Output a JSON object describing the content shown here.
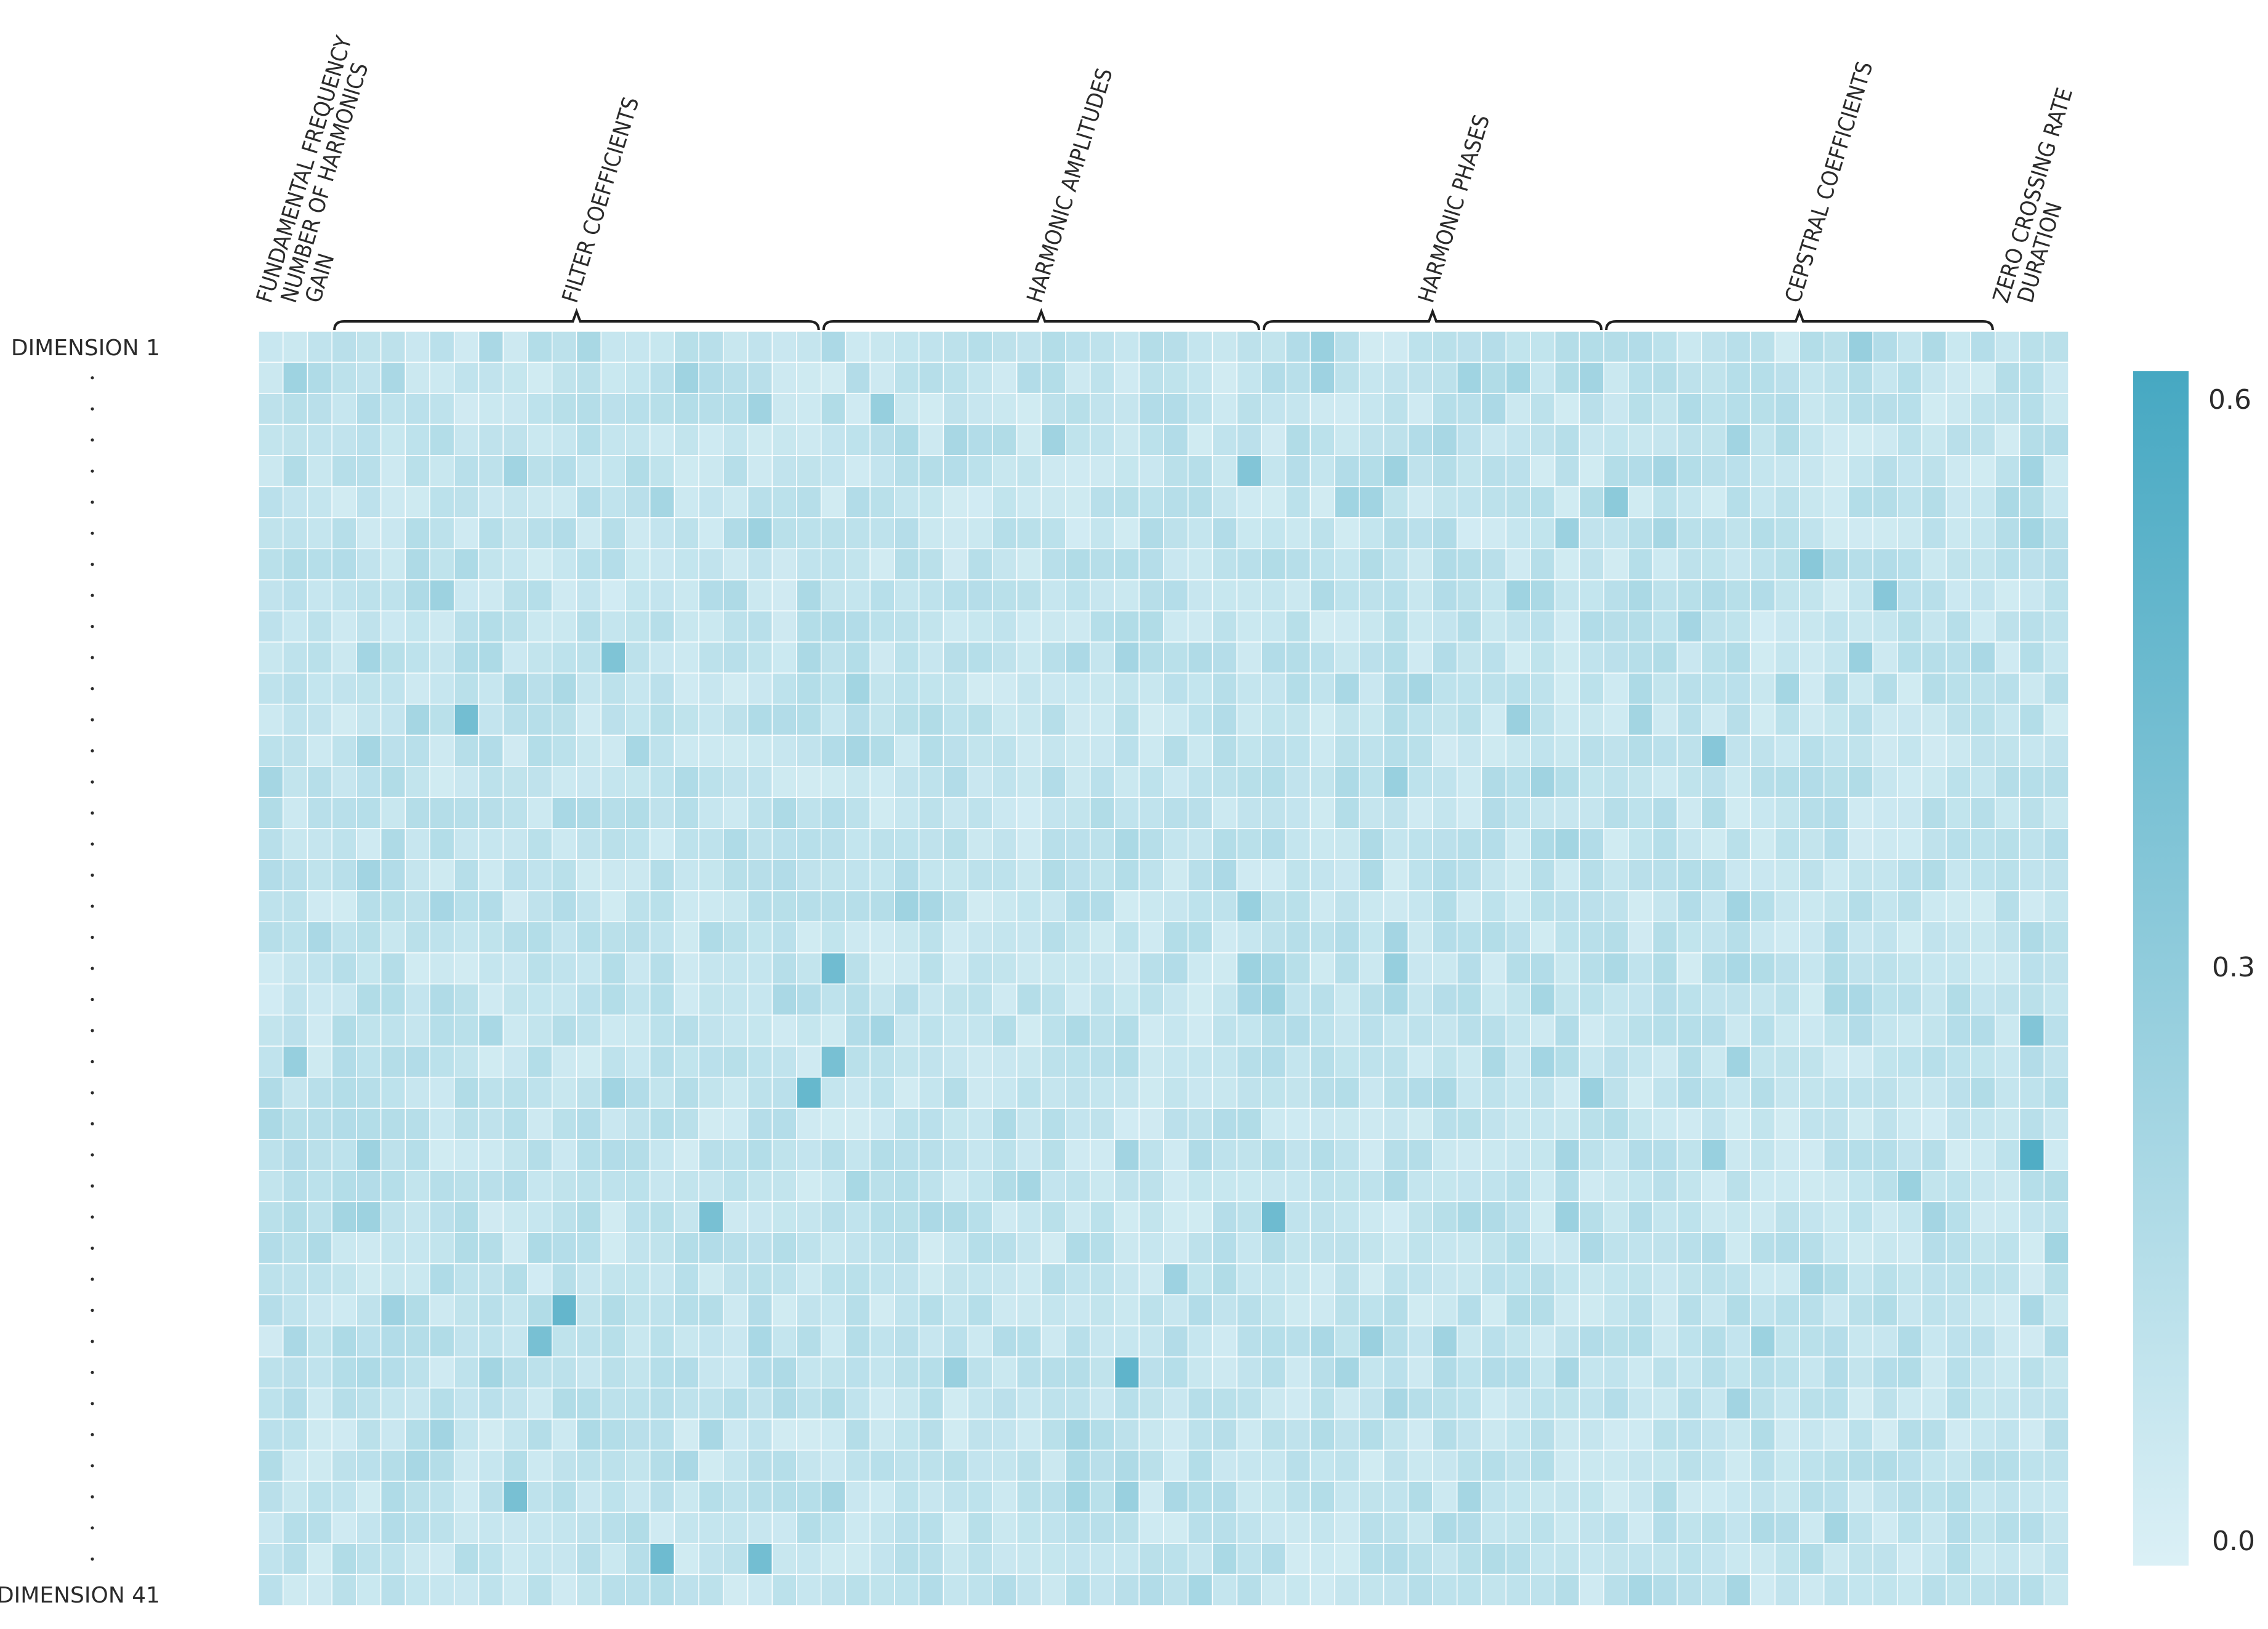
{
  "chart_data": {
    "type": "heatmap",
    "row_labels": {
      "first": "DIMENSION 1",
      "last": "DIMENSION 41"
    },
    "n_rows": 41,
    "n_cols": 74,
    "column_feature_labels": [
      {
        "text": "FUNDAMENTAL FREQUENCY",
        "col_start": 0,
        "col_end": 0
      },
      {
        "text": "NUMBER OF HARMONICS",
        "col_start": 1,
        "col_end": 1
      },
      {
        "text": "GAIN",
        "col_start": 2,
        "col_end": 2
      },
      {
        "text": "FILTER COEFFICIENTS",
        "col_start": 3,
        "col_end": 22,
        "bracket": true
      },
      {
        "text": "HARMONIC AMPLITUDES",
        "col_start": 23,
        "col_end": 40,
        "bracket": true
      },
      {
        "text": "HARMONIC PHASES",
        "col_start": 41,
        "col_end": 54,
        "bracket": true
      },
      {
        "text": "CEPSTRAL COEFFICIENTS",
        "col_start": 55,
        "col_end": 70,
        "bracket": true
      },
      {
        "text": "ZERO CROSSING RATE",
        "col_start": 71,
        "col_end": 71
      },
      {
        "text": "DURATION",
        "col_start": 72,
        "col_end": 72
      }
    ],
    "colorbar": {
      "min": 0.0,
      "max": 0.6,
      "ticks": [
        "0.6",
        "0.3",
        "0.0"
      ],
      "color_low": "#dbf0f6",
      "color_high": "#46a8c2"
    },
    "value_range": [
      0.0,
      0.6
    ],
    "values_note": "",
    "highlights": [
      {
        "row": 12,
        "col": 8,
        "value": 0.42
      },
      {
        "row": 20,
        "col": 23,
        "value": 0.43
      },
      {
        "row": 23,
        "col": 23,
        "value": 0.4
      },
      {
        "row": 24,
        "col": 22,
        "value": 0.47
      },
      {
        "row": 26,
        "col": 72,
        "value": 0.56
      },
      {
        "row": 28,
        "col": 18,
        "value": 0.4
      },
      {
        "row": 28,
        "col": 41,
        "value": 0.44
      },
      {
        "row": 31,
        "col": 12,
        "value": 0.48
      },
      {
        "row": 32,
        "col": 11,
        "value": 0.4
      },
      {
        "row": 33,
        "col": 35,
        "value": 0.5
      },
      {
        "row": 37,
        "col": 10,
        "value": 0.4
      },
      {
        "row": 39,
        "col": 16,
        "value": 0.44
      },
      {
        "row": 39,
        "col": 20,
        "value": 0.42
      },
      {
        "row": 4,
        "col": 40,
        "value": 0.36
      },
      {
        "row": 5,
        "col": 55,
        "value": 0.32
      },
      {
        "row": 7,
        "col": 63,
        "value": 0.33
      },
      {
        "row": 8,
        "col": 66,
        "value": 0.34
      },
      {
        "row": 22,
        "col": 72,
        "value": 0.36
      },
      {
        "row": 10,
        "col": 14,
        "value": 0.37
      },
      {
        "row": 13,
        "col": 59,
        "value": 0.34
      }
    ]
  }
}
